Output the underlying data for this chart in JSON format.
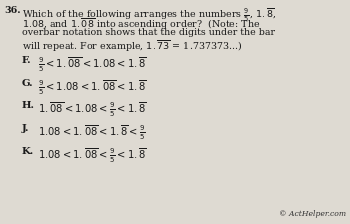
{
  "bg_color": "#dedad2",
  "text_color": "#1a1a1a",
  "figsize": [
    3.5,
    2.24
  ],
  "dpi": 100,
  "copyright": "© ActHelper.com",
  "q_num": "36.",
  "q_line1": "Which of the following arranges the numbers",
  "q_line2": ", and",
  "q_line3": "into ascending order?  (Note: The",
  "q_line4": "overbar notation shows that the digits under the bar",
  "q_line5": "will repeat. For example,",
  "q_line5b": "= 1.737373...)",
  "labels": [
    "F.",
    "G.",
    "H.",
    "J.",
    "K."
  ],
  "ans_F": "$\\frac{9}{5} < 1.\\overline{08} < 1.08 < 1.\\overline{8}$",
  "ans_G": "$\\frac{9}{5} < 1.08 < 1.\\overline{08} < 1.\\overline{8}$",
  "ans_H": "$1.\\overline{08} < 1.08 < \\frac{9}{5} < 1.\\overline{8}$",
  "ans_J": "$1.08 < 1.\\overline{08} < 1.\\overline{8} < \\frac{9}{5}$",
  "ans_K": "$1.08 < 1.\\overline{08} < \\frac{9}{5} < 1.\\overline{8}$"
}
